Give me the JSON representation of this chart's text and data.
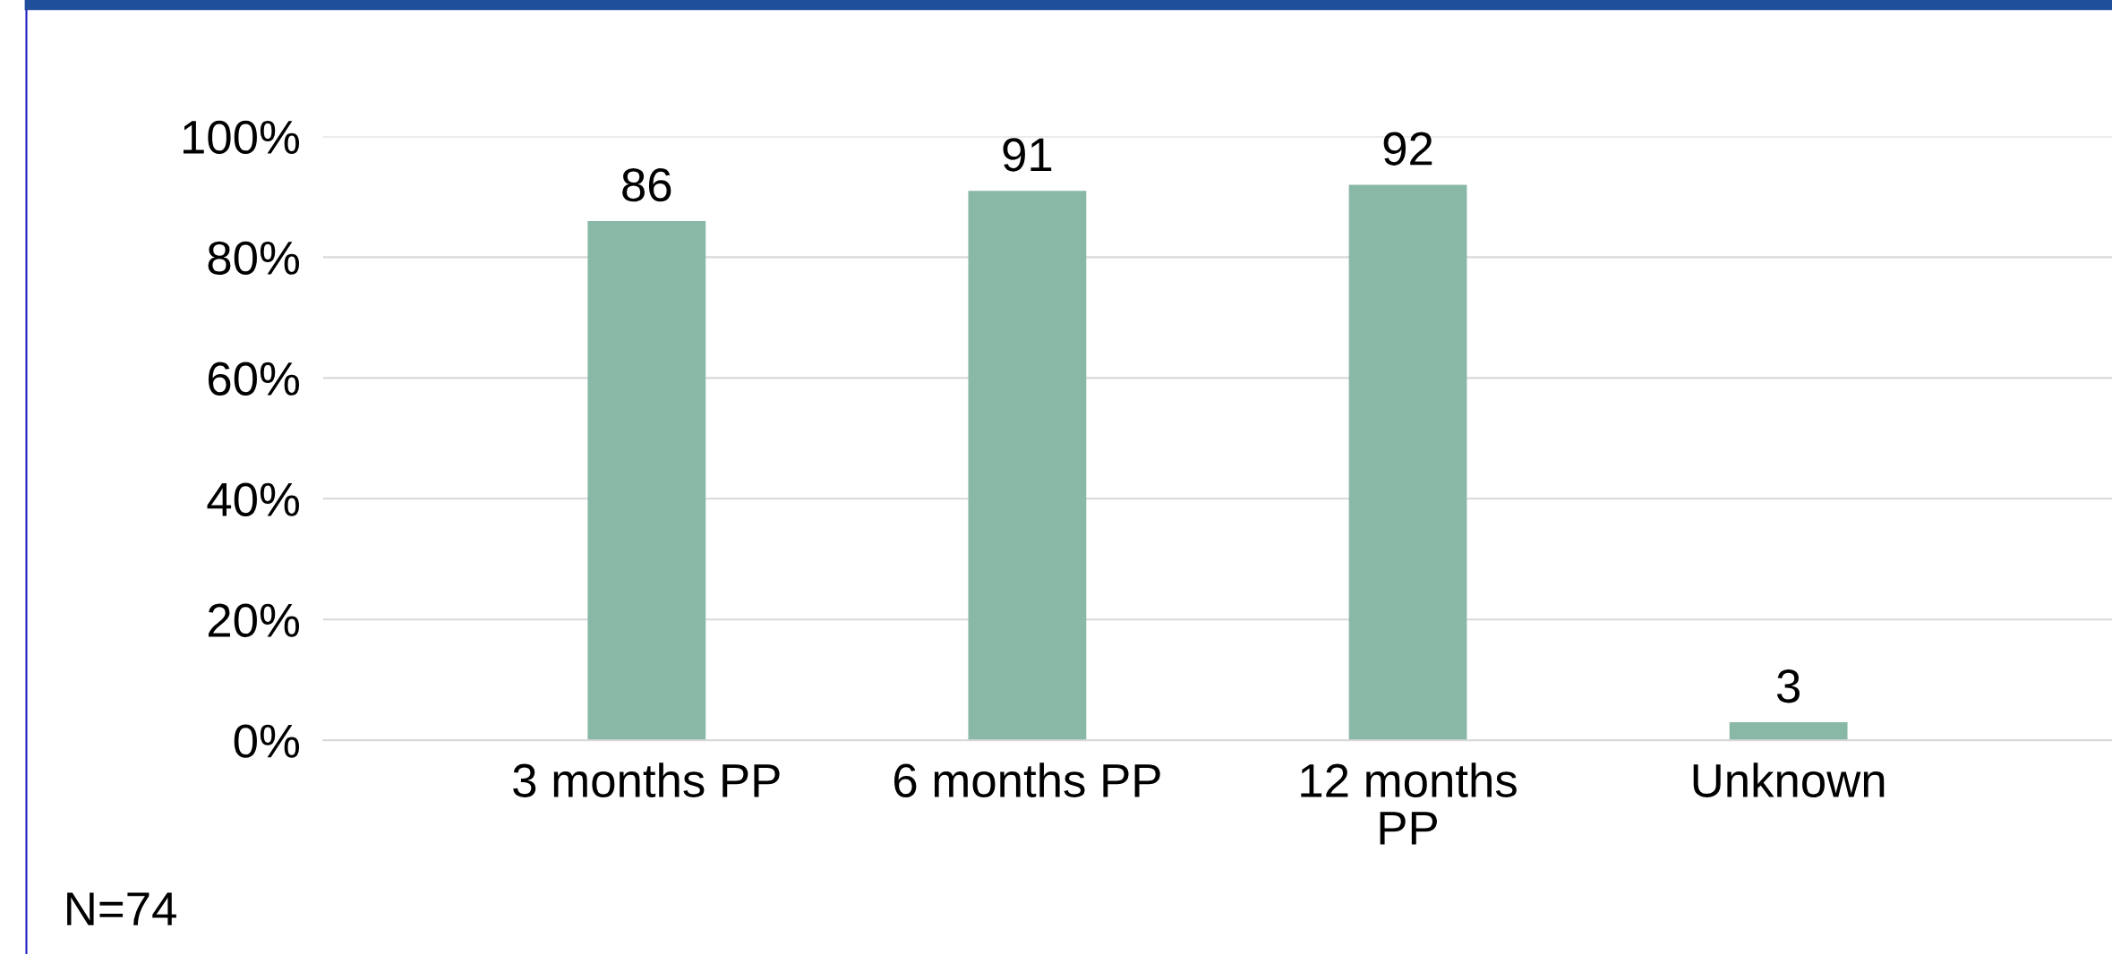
{
  "chart_data": {
    "type": "bar",
    "categories": [
      "3 months PP",
      "6 months PP",
      "12 months PP",
      "Unknown"
    ],
    "values": [
      86,
      91,
      92,
      3
    ],
    "color": "#8ab8a6",
    "data_labels": true,
    "ylim": [
      0,
      100
    ],
    "yticks": [
      {
        "value": 0,
        "label": "0%"
      },
      {
        "value": 20,
        "label": "20%"
      },
      {
        "value": 40,
        "label": "40%"
      },
      {
        "value": 60,
        "label": "60%"
      },
      {
        "value": 80,
        "label": "80%"
      },
      {
        "value": 100,
        "label": "100%"
      }
    ],
    "grid": "y",
    "legend": false,
    "annotations": [
      "N=74"
    ]
  }
}
